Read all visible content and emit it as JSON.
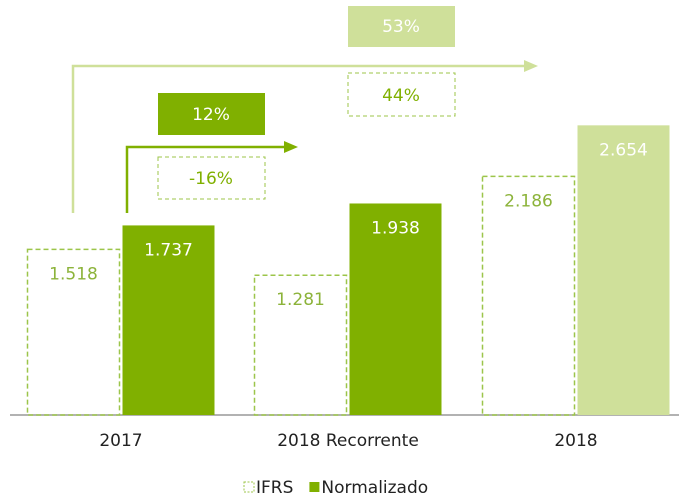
{
  "chart_data": {
    "type": "bar",
    "categories": [
      "2017",
      "2018 Recorrente",
      "2018"
    ],
    "series": [
      {
        "name": "IFRS",
        "color": "#9cc54a",
        "style": "dashed",
        "values": [
          1.518,
          1.281,
          2.186
        ]
      },
      {
        "name": "Normalizado",
        "color": "#80b000",
        "point_colors": [
          "#80b000",
          "#80b000",
          "#cfe09a"
        ],
        "values": [
          1.737,
          1.938,
          2.654
        ]
      }
    ],
    "ylim": [
      0,
      3.5
    ],
    "annotations": [
      "12%",
      "-16%",
      "53%",
      "44%"
    ],
    "legend": "bottom"
  }
}
